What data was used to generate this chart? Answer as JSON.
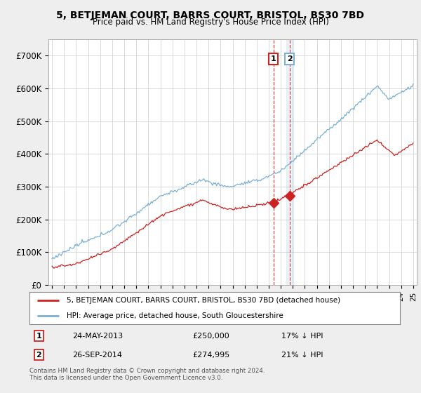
{
  "title": "5, BETJEMAN COURT, BARRS COURT, BRISTOL, BS30 7BD",
  "subtitle": "Price paid vs. HM Land Registry's House Price Index (HPI)",
  "legend_line1": "5, BETJEMAN COURT, BARRS COURT, BRISTOL, BS30 7BD (detached house)",
  "legend_line2": "HPI: Average price, detached house, South Gloucestershire",
  "transaction1_date": "24-MAY-2013",
  "transaction1_price": "£250,000",
  "transaction1_hpi": "17% ↓ HPI",
  "transaction2_date": "26-SEP-2014",
  "transaction2_price": "£274,995",
  "transaction2_hpi": "21% ↓ HPI",
  "footer": "Contains HM Land Registry data © Crown copyright and database right 2024.\nThis data is licensed under the Open Government Licence v3.0.",
  "hpi_color": "#7ab0d4",
  "price_color": "#cc2222",
  "vline1_color": "#cc2222",
  "vline2_color": "#cc2222",
  "grid_color": "#cccccc",
  "ylim": [
    0,
    750000
  ],
  "yticks": [
    0,
    100000,
    200000,
    300000,
    400000,
    500000,
    600000,
    700000
  ],
  "ytick_labels": [
    "£0",
    "£100K",
    "£200K",
    "£300K",
    "£400K",
    "£500K",
    "£600K",
    "£700K"
  ],
  "transaction1_year": 2013.39,
  "transaction2_year": 2014.73,
  "transaction1_price_val": 250000,
  "transaction2_price_val": 274995,
  "box1_color": "#cc2222",
  "box2_color": "#7ab0d4"
}
